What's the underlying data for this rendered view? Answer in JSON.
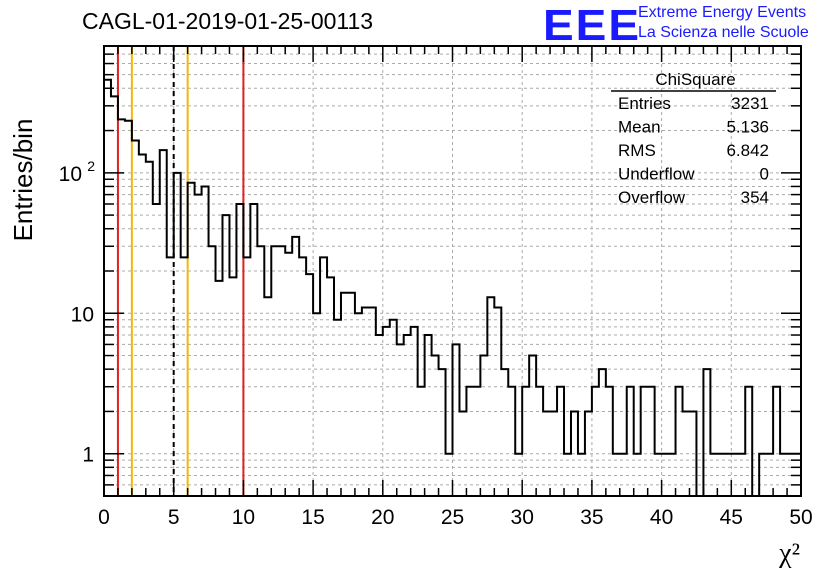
{
  "logo": {
    "text": "EEE",
    "line1": "Extreme Energy Events",
    "line2": "La Scienza nelle Scuole"
  },
  "chart_data": {
    "type": "bar",
    "style": "step-histogram",
    "title": "CAGL-01-2019-01-25-00113",
    "xlabel": "χ²",
    "ylabel": "Entries/bin",
    "xlim": [
      0,
      50
    ],
    "ylim": [
      0.5,
      800
    ],
    "yscale": "log",
    "grid": true,
    "bin_width": 0.5,
    "x_ticks": [
      0,
      5,
      10,
      15,
      20,
      25,
      30,
      35,
      40,
      45,
      50
    ],
    "y_ticks": [
      {
        "value": 1,
        "label": "1"
      },
      {
        "value": 10,
        "label": "10"
      },
      {
        "value": 100,
        "label": "10",
        "sup": "2"
      }
    ],
    "values": [
      460,
      350,
      240,
      235,
      170,
      135,
      120,
      60,
      145,
      25,
      100,
      25,
      85,
      70,
      80,
      30,
      17,
      50,
      18,
      60,
      25,
      60,
      30,
      13,
      30,
      30,
      27,
      35,
      25,
      19,
      10,
      25,
      18,
      9,
      14,
      14,
      10,
      11,
      11,
      7,
      8,
      9,
      6,
      7,
      8,
      3,
      7,
      5,
      4,
      1,
      6,
      2,
      3,
      3,
      5,
      13,
      11,
      4,
      3,
      1,
      3,
      5,
      3,
      2,
      2,
      3,
      1,
      2,
      1,
      2,
      3,
      4,
      3,
      1,
      1,
      3,
      1,
      3,
      3,
      1,
      1,
      1,
      3,
      2,
      2,
      0.1,
      4,
      1,
      1,
      1,
      1,
      1,
      3,
      0.1,
      1,
      1,
      3,
      1,
      1,
      1
    ],
    "vertical_lines": [
      {
        "x": 1,
        "color": "#e0201b",
        "style": "solid"
      },
      {
        "x": 2,
        "color": "#f2b707",
        "style": "solid"
      },
      {
        "x": 5,
        "color": "#000000",
        "style": "dashed"
      },
      {
        "x": 6,
        "color": "#f2b707",
        "style": "solid"
      },
      {
        "x": 10,
        "color": "#e0201b",
        "style": "solid"
      }
    ],
    "stats": {
      "name": "ChiSquare",
      "rows": [
        {
          "label": "Entries",
          "value": "3231"
        },
        {
          "label": "Mean",
          "value": "5.136"
        },
        {
          "label": "RMS",
          "value": "6.842"
        },
        {
          "label": "Underflow",
          "value": "0"
        },
        {
          "label": "Overflow",
          "value": "354"
        }
      ]
    }
  }
}
